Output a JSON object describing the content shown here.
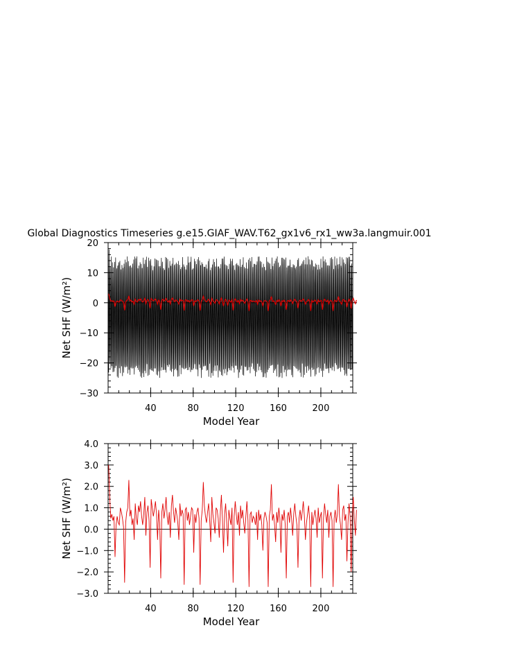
{
  "title": "Global Diagnostics Timeseries g.e15.GIAF_WAV.T62_gx1v6_rx1_ww3a.langmuir.001",
  "colors": {
    "monthly": "#000000",
    "annual": "#e00000",
    "zero_line": "#000000"
  },
  "chart_data": [
    {
      "type": "line",
      "xlabel": "Model Year",
      "ylabel": "Net SHF (W/m²)",
      "xlim": [
        0,
        230
      ],
      "ylim": [
        -30,
        20
      ],
      "x_ticks": [
        40,
        80,
        120,
        160,
        200
      ],
      "y_ticks": [
        -30,
        -20,
        -10,
        0,
        10,
        20
      ],
      "y_tick_labels": [
        "−30",
        "−20",
        "−10",
        "0",
        "10",
        "20"
      ],
      "reference_line": 0,
      "series": [
        {
          "kind": "monthly",
          "description_values": "seasonal cycle between about -22 and +13 W/m2 each year, approximate envelope",
          "annual_min": -22.5,
          "annual_max": 13.0,
          "start_peak": 19.5
        },
        {
          "kind": "annual"
        }
      ]
    },
    {
      "type": "line",
      "xlabel": "Model Year",
      "ylabel": "Net SHF (W/m²)",
      "xlim": [
        0,
        230
      ],
      "ylim": [
        -3.0,
        4.0
      ],
      "x_ticks": [
        40,
        80,
        120,
        160,
        200
      ],
      "y_ticks": [
        -3.0,
        -2.0,
        -1.0,
        0.0,
        1.0,
        2.0,
        3.0,
        4.0
      ],
      "y_tick_labels": [
        "−3.0",
        "−2.0",
        "−1.0",
        "0.0",
        "1.0",
        "2.0",
        "3.0",
        "4.0"
      ],
      "reference_line": 0,
      "series": [
        {
          "kind": "annual",
          "x_start": 1,
          "values": [
            3.0,
            1.5,
            0.5,
            0.7,
            0.4,
            0.6,
            -1.3,
            0.2,
            0.6,
            0.3,
            0.2,
            1.0,
            0.8,
            0.5,
            0.1,
            -2.5,
            0.3,
            0.8,
            1.0,
            2.3,
            0.6,
            0.9,
            0.2,
            0.5,
            -0.5,
            1.2,
            0.5,
            0.2,
            1.1,
            0.8,
            1.3,
            0.6,
            0.2,
            0.7,
            1.5,
            -0.3,
            0.8,
            1.1,
            0.4,
            -1.8,
            1.4,
            1.0,
            0.6,
            0.9,
            1.3,
            0.7,
            -0.5,
            0.9,
            0.3,
            -2.3,
            0.8,
            1.2,
            0.5,
            0.9,
            1.5,
            0.6,
            0.2,
            0.8,
            -0.4,
            1.1,
            1.6,
            0.8,
            0.3,
            1.0,
            0.7,
            0.3,
            -0.5,
            1.2,
            0.6,
            0.9,
            0.7,
            -2.6,
            0.9,
            1.0,
            0.4,
            0.8,
            0.2,
            0.6,
            1.0,
            0.9,
            -1.1,
            0.7,
            0.3,
            0.8,
            1.0,
            0.5,
            -2.6,
            0.4,
            0.9,
            2.2,
            1.1,
            0.6,
            0.3,
            0.8,
            1.2,
            0.4,
            -0.6,
            1.5,
            0.7,
            0.3,
            -0.2,
            1.0,
            0.9,
            0.5,
            -0.4,
            0.8,
            1.6,
            0.4,
            -1.1,
            0.7,
            1.2,
            0.3,
            -0.8,
            0.9,
            0.5,
            0.2,
            1.0,
            -2.5,
            0.6,
            1.3,
            0.7,
            0.2,
            0.8,
            -0.3,
            1.1,
            0.5,
            0.9,
            0.3,
            -0.2,
            0.6,
            1.3,
            0.4,
            -2.7,
            0.7,
            0.8,
            0.3,
            0.6,
            0.5,
            0.2,
            0.8,
            -0.5,
            0.9,
            0.4,
            0.7,
            0.2,
            -1.0,
            0.5,
            0.8,
            0.6,
            0.3,
            -2.7,
            0.6,
            0.9,
            2.1,
            0.4,
            0.7,
            0.2,
            -0.6,
            0.8,
            0.3,
            1.0,
            0.5,
            -1.1,
            0.7,
            0.4,
            0.9,
            0.2,
            -2.3,
            0.6,
            0.8,
            0.3,
            1.0,
            0.5,
            -0.3,
            0.7,
            1.2,
            0.6,
            0.2,
            -1.8,
            0.5,
            0.9,
            0.4,
            0.8,
            1.3,
            0.6,
            -0.5,
            0.3,
            0.7,
            1.1,
            0.4,
            -2.7,
            0.8,
            0.2,
            0.6,
            0.9,
            0.5,
            -0.4,
            1.0,
            0.3,
            0.6,
            0.8,
            -2.3,
            0.5,
            1.2,
            0.7,
            0.3,
            0.9,
            -0.4,
            0.6,
            0.8,
            0.4,
            -2.7,
            0.5,
            0.9,
            0.3,
            0.7,
            2.1,
            0.6,
            0.2,
            -0.5,
            0.9,
            1.1,
            0.4,
            0.7,
            -1.5,
            0.3,
            1.2,
            0.6,
            -2.0,
            0.8,
            1.5,
            0.4,
            -0.3,
            0.9
          ]
        }
      ]
    }
  ]
}
